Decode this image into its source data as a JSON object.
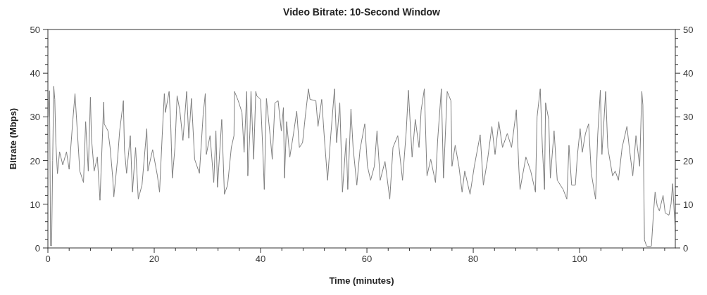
{
  "chart_data": {
    "type": "line",
    "title": "Video Bitrate: 10-Second Window",
    "xlabel": "Time (minutes)",
    "ylabel": "Bitrate (Mbps)",
    "xlim": [
      0,
      118
    ],
    "xticks": [
      0,
      {
        "value": 4,
        "label": null
      },
      {
        "value": 8,
        "label": null
      },
      {
        "value": 12,
        "label": null
      },
      {
        "value": 16,
        "label": null
      },
      20,
      {
        "value": 24,
        "label": null
      },
      {
        "value": 28,
        "label": null
      },
      {
        "value": 32,
        "label": null
      },
      {
        "value": 36,
        "label": null
      },
      40,
      {
        "value": 44,
        "label": null
      },
      {
        "value": 48,
        "label": null
      },
      {
        "value": 52,
        "label": null
      },
      {
        "value": 56,
        "label": null
      },
      60,
      {
        "value": 64,
        "label": null
      },
      {
        "value": 68,
        "label": null
      },
      {
        "value": 72,
        "label": null
      },
      {
        "value": 76,
        "label": null
      },
      80,
      {
        "value": 84,
        "label": null
      },
      {
        "value": 88,
        "label": null
      },
      {
        "value": 92,
        "label": null
      },
      {
        "value": 96,
        "label": null
      },
      100,
      {
        "value": 104,
        "label": null
      },
      {
        "value": 108,
        "label": null
      },
      {
        "value": 112,
        "label": null
      },
      {
        "value": 116,
        "label": null
      }
    ],
    "ylim": [
      0,
      50
    ],
    "yticks": [
      0,
      {
        "value": 2,
        "label": null
      },
      {
        "value": 4,
        "label": null
      },
      {
        "value": 6,
        "label": null
      },
      {
        "value": 8,
        "label": null
      },
      10,
      {
        "value": 12,
        "label": null
      },
      {
        "value": 14,
        "label": null
      },
      {
        "value": 16,
        "label": null
      },
      {
        "value": 18,
        "label": null
      },
      20,
      {
        "value": 22,
        "label": null
      },
      {
        "value": 24,
        "label": null
      },
      {
        "value": 26,
        "label": null
      },
      {
        "value": 28,
        "label": null
      },
      30,
      {
        "value": 32,
        "label": null
      },
      {
        "value": 34,
        "label": null
      },
      {
        "value": 36,
        "label": null
      },
      {
        "value": 38,
        "label": null
      },
      40,
      {
        "value": 42,
        "label": null
      },
      {
        "value": 44,
        "label": null
      },
      {
        "value": 46,
        "label": null
      },
      {
        "value": 48,
        "label": null
      },
      50
    ],
    "y2lim": [
      0,
      50
    ],
    "y2ticks": [
      0,
      {
        "value": 2,
        "label": null
      },
      {
        "value": 4,
        "label": null
      },
      {
        "value": 6,
        "label": null
      },
      {
        "value": 8,
        "label": null
      },
      10,
      {
        "value": 12,
        "label": null
      },
      {
        "value": 14,
        "label": null
      },
      {
        "value": 16,
        "label": null
      },
      {
        "value": 18,
        "label": null
      },
      20,
      {
        "value": 22,
        "label": null
      },
      {
        "value": 24,
        "label": null
      },
      {
        "value": 26,
        "label": null
      },
      {
        "value": 28,
        "label": null
      },
      30,
      {
        "value": 32,
        "label": null
      },
      {
        "value": 34,
        "label": null
      },
      {
        "value": 36,
        "label": null
      },
      {
        "value": 38,
        "label": null
      },
      40,
      {
        "value": 42,
        "label": null
      },
      {
        "value": 44,
        "label": null
      },
      {
        "value": 46,
        "label": null
      },
      {
        "value": 48,
        "label": null
      },
      50
    ],
    "grid": false,
    "marker": "none",
    "line_style": "solid",
    "x": [
      0.1,
      0.3,
      0.4,
      0.5,
      0.7,
      0.9,
      1.1,
      1.3,
      1.5,
      1.8,
      2.2,
      2.8,
      3.5,
      4.0,
      4.7,
      5.1,
      6.0,
      6.7,
      7.1,
      7.6,
      8.0,
      8.2,
      8.7,
      9.3,
      9.8,
      10.5,
      10.6,
      11.3,
      11.7,
      12.2,
      12.4,
      13.1,
      13.5,
      14.2,
      14.4,
      14.8,
      15.5,
      15.9,
      16.5,
      17.0,
      17.7,
      18.6,
      18.8,
      19.7,
      20.6,
      21.0,
      21.5,
      21.9,
      22.1,
      22.8,
      23.1,
      23.4,
      23.9,
      24.3,
      24.8,
      25.4,
      26.1,
      26.5,
      27.0,
      27.6,
      28.5,
      29.2,
      29.6,
      29.8,
      30.5,
      31.2,
      31.6,
      31.9,
      32.7,
      33.2,
      33.8,
      34.5,
      35.0,
      35.1,
      35.8,
      36.5,
      36.9,
      37.4,
      37.6,
      38.0,
      38.2,
      38.7,
      39.1,
      39.3,
      40.0,
      40.4,
      40.7,
      41.1,
      41.8,
      42.2,
      42.7,
      43.3,
      43.9,
      44.3,
      44.5,
      44.9,
      45.5,
      46.2,
      46.8,
      47.3,
      47.9,
      48.4,
      49.0,
      49.3,
      50.4,
      50.8,
      51.5,
      52.0,
      52.6,
      53.2,
      53.9,
      54.3,
      54.9,
      55.4,
      56.1,
      56.4,
      57.0,
      57.4,
      58.1,
      58.7,
      59.6,
      60.1,
      60.7,
      61.4,
      61.9,
      62.5,
      63.4,
      64.3,
      64.9,
      65.8,
      66.7,
      67.4,
      67.8,
      68.5,
      69.1,
      69.8,
      70.2,
      70.8,
      71.3,
      72.0,
      72.9,
      73.3,
      74.0,
      74.4,
      75.1,
      75.8,
      76.0,
      76.6,
      77.3,
      77.9,
      78.4,
      79.4,
      80.2,
      81.3,
      81.9,
      82.7,
      83.5,
      84.1,
      84.8,
      85.5,
      86.4,
      87.2,
      88.1,
      88.6,
      88.8,
      89.9,
      90.8,
      91.7,
      92.0,
      92.6,
      93.0,
      93.4,
      93.6,
      94.2,
      94.5,
      95.2,
      95.8,
      96.9,
      97.6,
      98.0,
      98.5,
      99.2,
      99.6,
      100.1,
      100.5,
      101.1,
      101.7,
      102.2,
      103.0,
      103.4,
      103.9,
      104.2,
      104.9,
      105.3,
      106.2,
      106.7,
      107.3,
      108.0,
      108.9,
      109.5,
      110.0,
      110.6,
      111.3,
      111.7,
      111.9,
      112.2,
      112.6,
      113.5,
      113.9,
      114.2,
      114.6,
      115.0,
      115.7,
      116.1,
      116.8,
      117.2,
      117.5,
      118.0
    ],
    "series": [
      {
        "color": "#7f7f7f",
        "values": [
          30,
          36,
          20,
          0.5,
          0.5,
          20,
          37,
          34,
          24,
          17,
          22,
          19,
          22,
          18,
          29.4,
          35.3,
          17.6,
          15.0,
          28.9,
          17.6,
          34.5,
          25.1,
          17.6,
          20.8,
          10.9,
          33.4,
          28.4,
          26.8,
          23.0,
          16.0,
          11.7,
          20.3,
          26.8,
          33.7,
          22.5,
          17.1,
          25.7,
          12.8,
          23.0,
          11.2,
          14.4,
          27.3,
          17.6,
          22.5,
          16.5,
          12.8,
          25.7,
          35.3,
          31.0,
          35.8,
          28.4,
          16.0,
          23.0,
          34.8,
          31.6,
          24.6,
          35.8,
          25.1,
          34.2,
          20.3,
          17.1,
          30.5,
          35.3,
          21.4,
          25.7,
          15.0,
          26.8,
          13.9,
          29.4,
          12.3,
          14.4,
          23.0,
          25.7,
          35.8,
          33.7,
          31.0,
          21.9,
          35.8,
          16.5,
          26.8,
          35.8,
          20.3,
          35.8,
          34.8,
          34.0,
          23.0,
          13.4,
          34.2,
          25.7,
          20.3,
          33.2,
          33.7,
          26.8,
          32.1,
          16.0,
          28.9,
          20.8,
          26.2,
          31.3,
          23.0,
          24.1,
          30.0,
          36.4,
          34.0,
          33.7,
          27.8,
          34.0,
          25.1,
          15.5,
          25.7,
          36.4,
          24.1,
          33.2,
          12.8,
          25.1,
          13.4,
          31.8,
          23.0,
          14.4,
          22.5,
          28.4,
          18.7,
          15.5,
          18.7,
          26.8,
          15.5,
          19.8,
          11.2,
          23.0,
          25.7,
          15.5,
          26.8,
          36.1,
          20.8,
          29.4,
          23.0,
          31.5,
          36.4,
          16.5,
          20.3,
          15.0,
          24.6,
          36.4,
          16.0,
          35.8,
          33.7,
          18.7,
          23.5,
          18.7,
          12.8,
          17.6,
          12.3,
          18.7,
          25.9,
          14.4,
          20.3,
          27.8,
          21.4,
          28.9,
          23.0,
          26.2,
          23.0,
          31.6,
          17.6,
          13.4,
          20.8,
          17.6,
          12.8,
          30.0,
          36.4,
          23.0,
          13.4,
          33.2,
          29.4,
          16.0,
          26.8,
          15.5,
          13.4,
          11.2,
          23.5,
          14.4,
          14.4,
          21.4,
          27.3,
          21.9,
          26.2,
          28.4,
          17.1,
          11.2,
          25.7,
          36.1,
          21.4,
          35.8,
          23.0,
          16.5,
          17.6,
          15.5,
          23.0,
          27.8,
          21.4,
          16.5,
          25.7,
          18.7,
          35.8,
          32.7,
          1.8,
          0.4,
          0.4,
          8.0,
          12.8,
          9.6,
          8.5,
          12.0,
          8.0,
          7.5,
          10.1,
          14.7,
          3.7
        ]
      }
    ]
  }
}
